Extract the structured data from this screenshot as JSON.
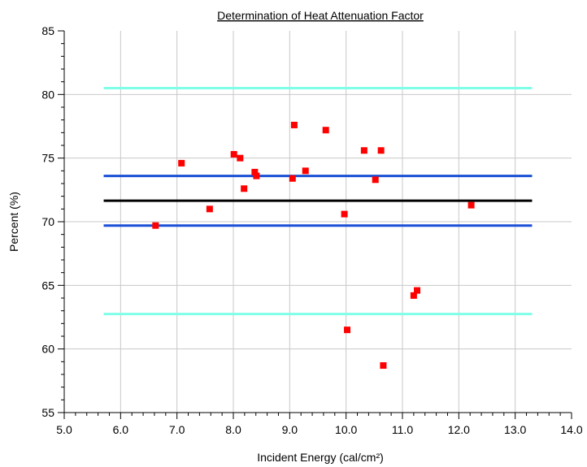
{
  "chart_data": {
    "type": "scatter",
    "title": "Determination of Heat Attenuation Factor",
    "xlabel": "Incident Energy (cal/cm²)",
    "ylabel": "Percent (%)",
    "xlim": [
      5.0,
      14.0
    ],
    "ylim": [
      55,
      85
    ],
    "x_ticks": [
      "5.0",
      "6.0",
      "7.0",
      "8.0",
      "9.0",
      "10.0",
      "11.0",
      "12.0",
      "13.0",
      "14.0"
    ],
    "y_ticks": [
      "55",
      "60",
      "65",
      "70",
      "75",
      "80",
      "85"
    ],
    "grid": true,
    "series": [
      {
        "type": "scatter",
        "color": "#ff0000",
        "points": [
          {
            "x": 6.62,
            "y": 69.7
          },
          {
            "x": 7.08,
            "y": 74.6
          },
          {
            "x": 7.58,
            "y": 71.0
          },
          {
            "x": 8.01,
            "y": 75.3
          },
          {
            "x": 8.12,
            "y": 75.0
          },
          {
            "x": 8.19,
            "y": 72.6
          },
          {
            "x": 8.38,
            "y": 73.9
          },
          {
            "x": 8.41,
            "y": 73.6
          },
          {
            "x": 9.05,
            "y": 73.4
          },
          {
            "x": 9.08,
            "y": 77.6
          },
          {
            "x": 9.28,
            "y": 74.0
          },
          {
            "x": 9.64,
            "y": 77.2
          },
          {
            "x": 9.97,
            "y": 70.6
          },
          {
            "x": 10.02,
            "y": 61.5
          },
          {
            "x": 10.32,
            "y": 75.6
          },
          {
            "x": 10.52,
            "y": 73.3
          },
          {
            "x": 10.62,
            "y": 75.6
          },
          {
            "x": 10.66,
            "y": 58.7
          },
          {
            "x": 11.2,
            "y": 64.2
          },
          {
            "x": 11.26,
            "y": 64.6
          },
          {
            "x": 12.22,
            "y": 71.3
          }
        ]
      }
    ],
    "reference_lines": [
      {
        "y": 71.65,
        "x_start": 5.7,
        "x_end": 13.3,
        "color": "#000000"
      },
      {
        "y": 73.6,
        "x_start": 5.7,
        "x_end": 13.3,
        "color": "#1a4fd6"
      },
      {
        "y": 69.7,
        "x_start": 5.7,
        "x_end": 13.3,
        "color": "#1a4fd6"
      },
      {
        "y": 80.5,
        "x_start": 5.7,
        "x_end": 13.3,
        "color": "#7fffe8"
      },
      {
        "y": 62.75,
        "x_start": 5.7,
        "x_end": 13.3,
        "color": "#7fffe8"
      }
    ]
  }
}
